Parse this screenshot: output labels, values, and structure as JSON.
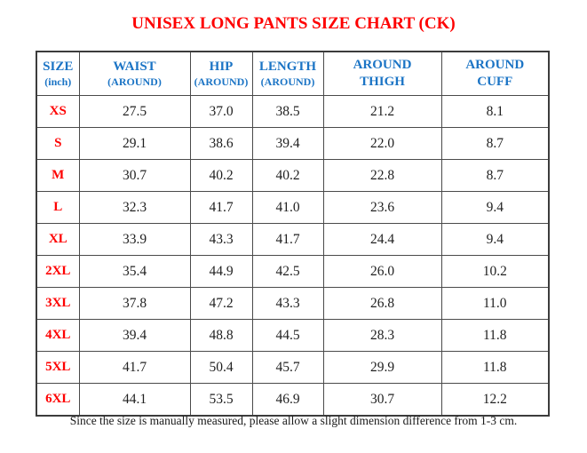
{
  "title": "UNISEX LONG PANTS SIZE CHART (CK)",
  "table": {
    "headers": [
      {
        "line1": "SIZE",
        "line2": "(inch)"
      },
      {
        "line1": "WAIST",
        "line2": "(AROUND)"
      },
      {
        "line1": "HIP",
        "line2": "(AROUND)"
      },
      {
        "line1": "LENGTH",
        "line2": "(AROUND)"
      },
      {
        "line1": "AROUND",
        "line2": "THIGH"
      },
      {
        "line1": "AROUND",
        "line2": "CUFF"
      }
    ],
    "rows": [
      {
        "size": "XS",
        "waist": "27.5",
        "hip": "37.0",
        "length": "38.5",
        "thigh": "21.2",
        "cuff": "8.1"
      },
      {
        "size": "S",
        "waist": "29.1",
        "hip": "38.6",
        "length": "39.4",
        "thigh": "22.0",
        "cuff": "8.7"
      },
      {
        "size": "M",
        "waist": "30.7",
        "hip": "40.2",
        "length": "40.2",
        "thigh": "22.8",
        "cuff": "8.7"
      },
      {
        "size": "L",
        "waist": "32.3",
        "hip": "41.7",
        "length": "41.0",
        "thigh": "23.6",
        "cuff": "9.4"
      },
      {
        "size": "XL",
        "waist": "33.9",
        "hip": "43.3",
        "length": "41.7",
        "thigh": "24.4",
        "cuff": "9.4"
      },
      {
        "size": "2XL",
        "waist": "35.4",
        "hip": "44.9",
        "length": "42.5",
        "thigh": "26.0",
        "cuff": "10.2"
      },
      {
        "size": "3XL",
        "waist": "37.8",
        "hip": "47.2",
        "length": "43.3",
        "thigh": "26.8",
        "cuff": "11.0"
      },
      {
        "size": "4XL",
        "waist": "39.4",
        "hip": "48.8",
        "length": "44.5",
        "thigh": "28.3",
        "cuff": "11.8"
      },
      {
        "size": "5XL",
        "waist": "41.7",
        "hip": "50.4",
        "length": "45.7",
        "thigh": "29.9",
        "cuff": "11.8"
      },
      {
        "size": "6XL",
        "waist": "44.1",
        "hip": "53.5",
        "length": "46.9",
        "thigh": "30.7",
        "cuff": "12.2"
      }
    ]
  },
  "footnote": "Since the size is manually measured, please allow a slight dimension difference from 1-3 cm.",
  "colors": {
    "title_red": "#FE0000",
    "size_label_red": "#FE0000",
    "header_blue": "#1B74C5",
    "body_text": "#1F1F1F",
    "border": "#4A4A4A",
    "background": "#FFFFFF"
  }
}
